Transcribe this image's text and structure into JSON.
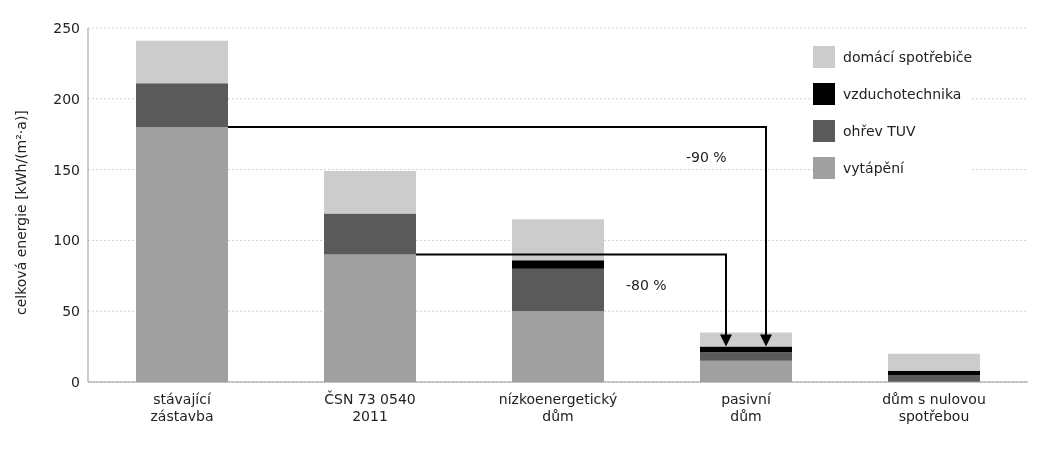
{
  "chart_data": {
    "type": "bar",
    "stacked": true,
    "ylabel": "celková energie [kWh/(m²·a)]",
    "categories": [
      "stávající\nzástavba",
      "ČSN 73 0540\n2011",
      "nízkoenergetický\ndům",
      "pasivní\ndům",
      "dům s nulovou\nspotřebou"
    ],
    "series": [
      {
        "name": "vytápění",
        "color": "#a0a0a0",
        "values": [
          180,
          90,
          50,
          15,
          0
        ]
      },
      {
        "name": "ohřev TUV",
        "color": "#5a5a5a",
        "values": [
          31,
          29,
          30,
          6,
          5
        ]
      },
      {
        "name": "vzduchotechnika",
        "color": "#000000",
        "values": [
          0,
          0,
          6,
          4,
          3
        ]
      },
      {
        "name": "domácí spotřebiče",
        "color": "#cccccc",
        "values": [
          30,
          30,
          29,
          10,
          12
        ]
      }
    ],
    "ylim": [
      0,
      250
    ],
    "yticks": [
      0,
      50,
      100,
      150,
      200,
      250
    ],
    "grid": "y",
    "legend": "top right",
    "annotations": [
      "-90 %",
      "-80 %"
    ]
  }
}
